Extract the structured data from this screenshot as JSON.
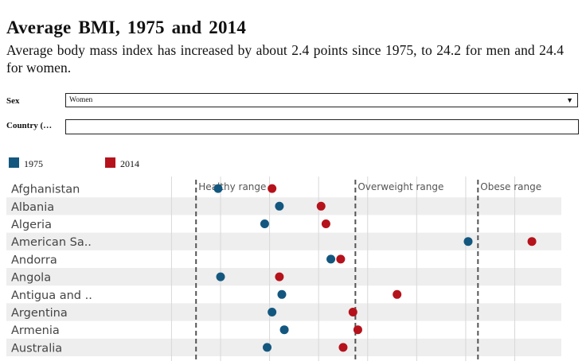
{
  "header": {
    "title": "Average BMI, 1975 and 2014",
    "subtitle": "Average body mass index has increased by about 2.4 points since 1975, to 24.2 for men and 24.4 for women."
  },
  "controls": {
    "sex_label": "Sex",
    "sex_value": "Women",
    "country_label": "Country (…",
    "country_value": ""
  },
  "colors": {
    "y1975": "#13577f",
    "y2014": "#b5121b",
    "stripe": "#eeeeee",
    "gridline": "#d8d8d8",
    "threshold": "#555555"
  },
  "legend": [
    {
      "label": "1975"
    },
    {
      "label": "2014"
    }
  ],
  "chart_data": {
    "type": "scatter",
    "xlabel": "",
    "ylabel": "",
    "xlim": [
      15.7,
      33.4
    ],
    "thresholds": [
      {
        "value": 18.5,
        "label": "Healthy range"
      },
      {
        "value": 25,
        "label": "Overweight range"
      },
      {
        "value": 30,
        "label": "Obese range"
      }
    ],
    "gridlines": [
      17.5,
      19.5,
      21.5,
      23.5,
      25.5,
      27.5,
      29.5,
      31.5
    ],
    "categories": [
      "Afghanistan",
      "Albania",
      "Algeria",
      "American Sa..",
      "Andorra",
      "Angola",
      "Antigua and ..",
      "Argentina",
      "Armenia",
      "Australia"
    ],
    "series": [
      {
        "name": "1975",
        "values": [
          19.4,
          21.9,
          21.3,
          29.6,
          24.0,
          19.5,
          22.0,
          21.6,
          22.1,
          21.4
        ]
      },
      {
        "name": "2014",
        "values": [
          21.6,
          23.6,
          23.8,
          32.2,
          24.4,
          21.9,
          26.7,
          24.9,
          25.1,
          24.5
        ]
      }
    ]
  }
}
